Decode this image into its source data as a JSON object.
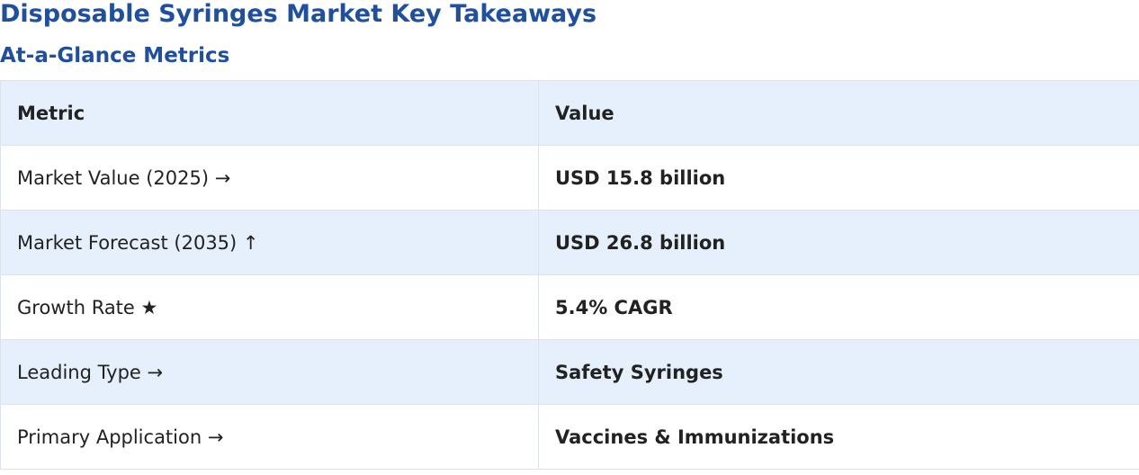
{
  "page": {
    "title": "Disposable Syringes Market Key Takeaways",
    "section_title": "At-a-Glance Metrics"
  },
  "colors": {
    "heading": "#1e4fa1",
    "row_tint": "#e6f0fc",
    "text": "#222222",
    "border": "#dde3ea"
  },
  "table": {
    "headers": [
      "Metric",
      "Value"
    ],
    "rows": [
      {
        "metric": "Market Value (2025) →",
        "value": "USD 15.8 billion"
      },
      {
        "metric": "Market Forecast (2035) ↑",
        "value": "USD 26.8 billion"
      },
      {
        "metric": "Growth Rate ★",
        "value": "5.4% CAGR"
      },
      {
        "metric": "Leading Type →",
        "value": "Safety Syringes"
      },
      {
        "metric": "Primary Application →",
        "value": "Vaccines & Immunizations"
      }
    ]
  }
}
